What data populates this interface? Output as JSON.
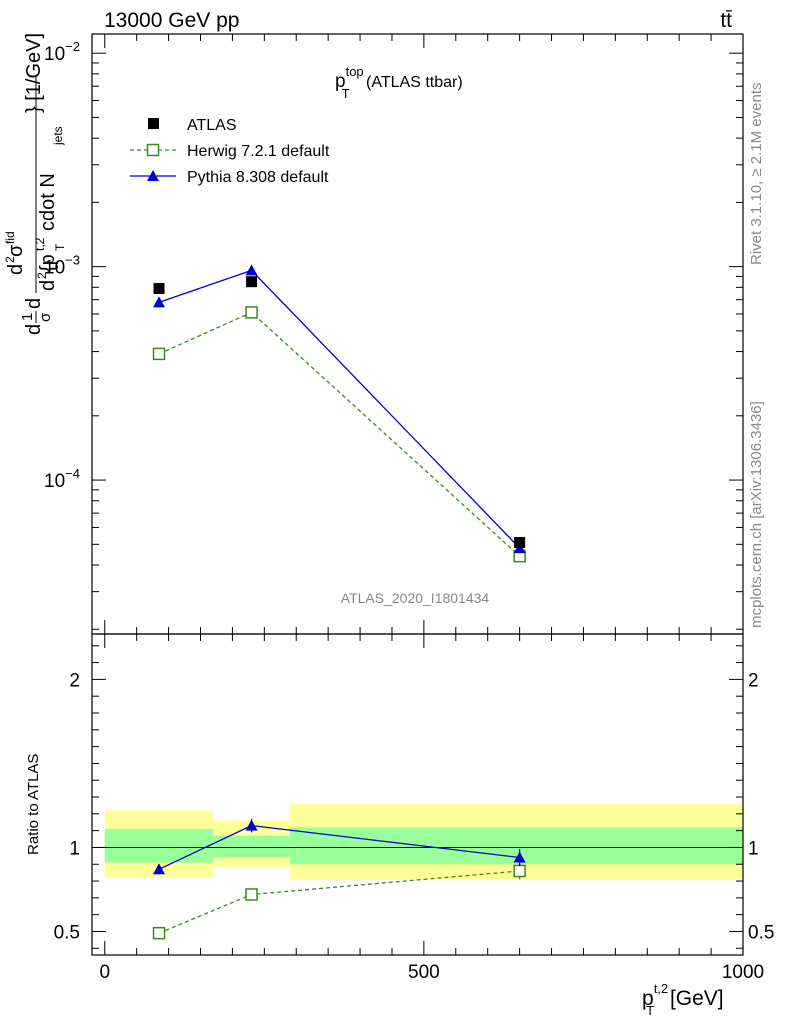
{
  "header": {
    "energy_label": "13000 GeV pp",
    "process_label": "tt̄"
  },
  "plot_title": {
    "main": "p",
    "sup": "top",
    "sub": "T",
    "rest": " (ATLAS ttbar)"
  },
  "side_labels": {
    "rivet": "Rivet 3.1.10, ≥ 2.1M events",
    "mcplots": "mcplots.cern.ch [arXiv:1306.3436]"
  },
  "watermark": "ATLAS_2020_I1801434",
  "y_axis_label": {
    "part1": "d",
    "part2": "1",
    "part3": "σ",
    "part4": "d",
    "part5": "d",
    "part6": "2",
    "part7": "σ",
    "part8": "fid",
    "part9": "d",
    "part10": "2",
    "part11": "{p",
    "part12": "t,2",
    "part13": "T",
    "part14": " cdot N",
    "part15": "jets",
    "part16": "} [1/GeV]"
  },
  "ratio_ylabel": "Ratio to ATLAS",
  "x_axis_label": {
    "main": "p",
    "sup": "t,2",
    "sub": "T",
    "unit": " [GeV]"
  },
  "legend": [
    {
      "label": "ATLAS",
      "style": "data"
    },
    {
      "label": "Herwig 7.2.1 default",
      "style": "herwig"
    },
    {
      "label": "Pythia 8.308 default",
      "style": "pythia"
    }
  ],
  "colors": {
    "atlas": "#000000",
    "herwig": "#3a8a1a",
    "pythia": "#0000cc",
    "band_inner": "#99ff99",
    "band_outer": "#ffff99"
  },
  "chart_data": [
    {
      "type": "scatter",
      "panel": "main",
      "x_range": [
        -20,
        1000
      ],
      "y_log": true,
      "y_range": [
        1.9e-05,
        0.0123
      ],
      "y_ticks": [
        {
          "value": 0.01,
          "label": "10",
          "exp": "−2"
        },
        {
          "value": 0.001,
          "label": "10",
          "exp": "−3"
        },
        {
          "value": 0.0001,
          "label": "10",
          "exp": "−4"
        }
      ],
      "series": [
        {
          "name": "ATLAS",
          "x": [
            85,
            230,
            650
          ],
          "y": [
            0.00079,
            0.00085,
            5.1e-05
          ]
        },
        {
          "name": "Herwig 7.2.1 default",
          "x": [
            85,
            230,
            650
          ],
          "y": [
            0.00039,
            0.00061,
            4.4e-05
          ]
        },
        {
          "name": "Pythia 8.308 default",
          "x": [
            85,
            230,
            650
          ],
          "y": [
            0.00068,
            0.00096,
            4.8e-05
          ]
        }
      ]
    },
    {
      "type": "line",
      "panel": "ratio",
      "x_range": [
        -20,
        1000
      ],
      "x_ticks": [
        0,
        500,
        1000
      ],
      "y_range": [
        0.36,
        2.27
      ],
      "y_ticks": [
        0.5,
        1,
        2
      ],
      "reference": 1,
      "bands": [
        {
          "x_lo": 0,
          "x_hi": 170,
          "inner": [
            0.91,
            1.11
          ],
          "outer": [
            0.82,
            1.22
          ]
        },
        {
          "x_lo": 170,
          "x_hi": 290,
          "inner": [
            0.94,
            1.07
          ],
          "outer": [
            0.88,
            1.16
          ]
        },
        {
          "x_lo": 290,
          "x_hi": 1000,
          "inner": [
            0.9,
            1.12
          ],
          "outer": [
            0.81,
            1.26
          ]
        }
      ],
      "series": [
        {
          "name": "Herwig 7.2.1 default",
          "x": [
            85,
            230,
            650
          ],
          "y": [
            0.49,
            0.72,
            0.86
          ],
          "err": [
            0.03,
            0.03,
            0.05
          ]
        },
        {
          "name": "Pythia 8.308 default",
          "x": [
            85,
            230,
            650
          ],
          "y": [
            0.87,
            1.13,
            0.94
          ],
          "err": [
            0.03,
            0.04,
            0.05
          ]
        }
      ]
    }
  ]
}
